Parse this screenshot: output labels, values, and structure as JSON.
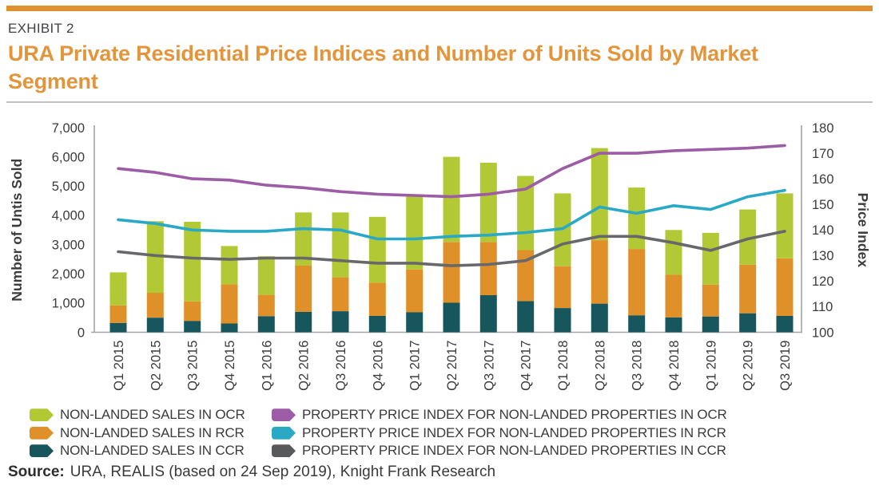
{
  "header": {
    "top_bar_color": "#df9130",
    "exhibit_label": "EXHIBIT 2",
    "title": "URA Private Residential Price Indices and Number of Units Sold by Market Segment",
    "title_color": "#e2953b"
  },
  "chart_data": {
    "type": "combo-stacked-bar-line",
    "categories": [
      "Q1 2015",
      "Q2 2015",
      "Q3 2015",
      "Q4 2015",
      "Q1 2016",
      "Q2 2016",
      "Q3 2016",
      "Q4 2016",
      "Q1 2017",
      "Q2 2017",
      "Q3 2017",
      "Q4 2017",
      "Q1 2018",
      "Q2 2018",
      "Q3 2018",
      "Q4 2018",
      "Q1 2019",
      "Q2 2019",
      "Q3 2019"
    ],
    "bar_series": [
      {
        "name": "NON-LANDED SALES IN CCR",
        "region": "CCR",
        "color": "#16565c",
        "values": [
          320,
          500,
          390,
          300,
          550,
          700,
          720,
          560,
          690,
          1010,
          1270,
          1070,
          830,
          980,
          580,
          510,
          540,
          650,
          560
        ]
      },
      {
        "name": "NON-LANDED SALES IN RCR",
        "region": "RCR",
        "color": "#df9028",
        "values": [
          600,
          850,
          670,
          1340,
          730,
          1580,
          1160,
          1140,
          1460,
          2080,
          1820,
          1740,
          1430,
          2170,
          2270,
          1460,
          1090,
          1660,
          1970
        ]
      },
      {
        "name": "NON-LANDED SALES IN OCR",
        "region": "OCR",
        "color": "#b3c835",
        "values": [
          1130,
          2450,
          2720,
          1310,
          1320,
          1820,
          2220,
          2250,
          2550,
          2910,
          2710,
          2540,
          2490,
          3150,
          2100,
          1530,
          1770,
          1890,
          2220
        ]
      }
    ],
    "line_series": [
      {
        "name": "PROPERTY PRICE INDEX FOR NON-LANDED PROPERTIES IN OCR",
        "region": "OCR",
        "color": "#9c5ca6",
        "axis": "right",
        "values": [
          164,
          162.5,
          160,
          159.5,
          157.5,
          156.5,
          155,
          154,
          153.5,
          153,
          154,
          156,
          164,
          170,
          170,
          171,
          171.5,
          172,
          173
        ]
      },
      {
        "name": "PROPERTY PRICE INDEX FOR NON-LANDED PROPERTIES IN RCR",
        "region": "RCR",
        "color": "#2aa9c6",
        "axis": "right",
        "values": [
          144,
          142.5,
          140,
          139.5,
          139.5,
          140.5,
          140,
          136.5,
          136.5,
          137.5,
          138,
          139,
          140.5,
          149,
          146.5,
          149.5,
          148,
          153,
          155.5
        ]
      },
      {
        "name": "PROPERTY PRICE INDEX FOR NON-LANDED PROPERTIES IN CCR",
        "region": "CCR",
        "color": "#67686b",
        "axis": "right",
        "values": [
          131.5,
          130,
          129,
          128.5,
          129,
          129,
          128,
          127,
          127,
          126,
          126.5,
          128,
          134.5,
          137.5,
          137.5,
          135,
          132,
          136.5,
          139.5
        ]
      }
    ],
    "left_axis": {
      "label": "Number of Untis Sold",
      "min": 0,
      "max": 7000,
      "tick_step": 1000,
      "tick_labels": [
        "0",
        "1,000",
        "2,000",
        "3,000",
        "4,000",
        "5,000",
        "6,000",
        "7,000"
      ]
    },
    "right_axis": {
      "label": "Price Index",
      "min": 100,
      "max": 180,
      "tick_step": 10,
      "tick_labels": [
        "100",
        "110",
        "120",
        "130",
        "140",
        "150",
        "160",
        "170",
        "180"
      ]
    },
    "grid": false,
    "legend_position": "bottom"
  },
  "legend": {
    "items": [
      {
        "label": "NON-LANDED SALES IN OCR",
        "color": "#b3c835",
        "mark": "bar"
      },
      {
        "label": "PROPERTY PRICE INDEX FOR NON-LANDED PROPERTIES IN OCR",
        "color": "#9c5ca6",
        "mark": "line"
      },
      {
        "label": "NON-LANDED SALES IN RCR",
        "color": "#df9028",
        "mark": "bar"
      },
      {
        "label": "PROPERTY PRICE INDEX FOR NON-LANDED PROPERTIES IN RCR",
        "color": "#2aa9c6",
        "mark": "line"
      },
      {
        "label": "NON-LANDED SALES IN CCR",
        "color": "#16565c",
        "mark": "bar"
      },
      {
        "label": "PROPERTY PRICE INDEX FOR NON-LANDED PROPERTIES IN CCR",
        "color": "#58595b",
        "mark": "line"
      }
    ]
  },
  "source": {
    "prefix": "Source:",
    "text": "URA, REALIS (based on 24 Sep 2019), Knight Frank Research"
  }
}
